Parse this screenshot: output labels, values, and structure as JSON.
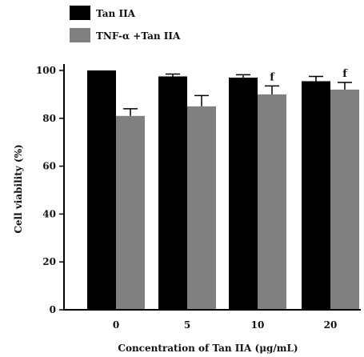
{
  "chart_data": {
    "type": "bar",
    "title": "",
    "xlabel": "Concentration of Tan IIA (μg/mL)",
    "ylabel": "Cell viability (%)",
    "ylim": [
      0,
      100
    ],
    "yticks": [
      0,
      20,
      40,
      60,
      80,
      100
    ],
    "categories": [
      "0",
      "5",
      "10",
      "20"
    ],
    "series": [
      {
        "name": "Tan IIA",
        "color": "#000000",
        "values": [
          100,
          97.5,
          97,
          95.5
        ],
        "errors": [
          0,
          1,
          1.2,
          2
        ]
      },
      {
        "name": "TNF-α +Tan IIA",
        "color": "#808080",
        "values": [
          81,
          85,
          90,
          92
        ],
        "errors": [
          3,
          4.5,
          3.5,
          3
        ]
      }
    ],
    "annotations": [
      {
        "text": "f",
        "category": "10",
        "series": "TNF-α +Tan IIA"
      },
      {
        "text": "f",
        "category": "20",
        "series": "TNF-α +Tan IIA"
      }
    ],
    "legend_position": "top-left",
    "grid": false
  }
}
